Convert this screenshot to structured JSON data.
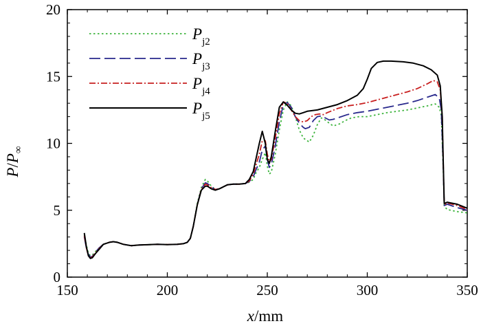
{
  "chart_data": {
    "type": "line",
    "xlabel_italic": "x",
    "xlabel_rest": "/mm",
    "ylabel_main": "P",
    "ylabel_sep": "/",
    "ylabel_denom": "P",
    "ylabel_sub": "∞",
    "xlim": [
      150,
      350
    ],
    "ylim": [
      0,
      20
    ],
    "xticks": [
      150,
      200,
      250,
      300,
      350
    ],
    "yticks": [
      0,
      5,
      10,
      15,
      20
    ],
    "legend_position": "top-left",
    "grid": false,
    "series": [
      {
        "name": "P",
        "sub": "j2",
        "color": "#3cb43c",
        "dash": "2.5,3.5",
        "width": 1.8,
        "points": [
          [
            158.5,
            3.2
          ],
          [
            159.5,
            2.4
          ],
          [
            160.5,
            1.8
          ],
          [
            161.5,
            1.6
          ],
          [
            162.5,
            1.65
          ],
          [
            164,
            1.9
          ],
          [
            166,
            2.2
          ],
          [
            168,
            2.45
          ],
          [
            171,
            2.6
          ],
          [
            173,
            2.65
          ],
          [
            175,
            2.6
          ],
          [
            178,
            2.45
          ],
          [
            182,
            2.35
          ],
          [
            186,
            2.4
          ],
          [
            190,
            2.42
          ],
          [
            195,
            2.45
          ],
          [
            200,
            2.43
          ],
          [
            205,
            2.45
          ],
          [
            208,
            2.5
          ],
          [
            210,
            2.6
          ],
          [
            211.5,
            2.9
          ],
          [
            213,
            3.8
          ],
          [
            215,
            5.5
          ],
          [
            217,
            6.7
          ],
          [
            219,
            7.3
          ],
          [
            220,
            7.2
          ],
          [
            222,
            6.8
          ],
          [
            224,
            6.55
          ],
          [
            226,
            6.6
          ],
          [
            228,
            6.75
          ],
          [
            230,
            6.9
          ],
          [
            233,
            6.95
          ],
          [
            236,
            6.95
          ],
          [
            239,
            7.0
          ],
          [
            241,
            7.1
          ],
          [
            243,
            7.3
          ],
          [
            244,
            7.7
          ],
          [
            246,
            8.2
          ],
          [
            247.5,
            8.8
          ],
          [
            249,
            9.3
          ],
          [
            250,
            8.3
          ],
          [
            251,
            7.7
          ],
          [
            252,
            7.85
          ],
          [
            254,
            9.2
          ],
          [
            256,
            11.0
          ],
          [
            258,
            12.5
          ],
          [
            260,
            13.1
          ],
          [
            262,
            12.8
          ],
          [
            264,
            12.0
          ],
          [
            266,
            11.0
          ],
          [
            268,
            10.4
          ],
          [
            270,
            10.2
          ],
          [
            271,
            10.1
          ],
          [
            273,
            10.6
          ],
          [
            275,
            11.4
          ],
          [
            277,
            11.9
          ],
          [
            279,
            11.75
          ],
          [
            281,
            11.5
          ],
          [
            283,
            11.3
          ],
          [
            286,
            11.45
          ],
          [
            289,
            11.7
          ],
          [
            292,
            11.9
          ],
          [
            296,
            12.0
          ],
          [
            300,
            12.0
          ],
          [
            305,
            12.15
          ],
          [
            310,
            12.3
          ],
          [
            315,
            12.4
          ],
          [
            320,
            12.5
          ],
          [
            325,
            12.65
          ],
          [
            330,
            12.8
          ],
          [
            334,
            12.95
          ],
          [
            336,
            12.7
          ],
          [
            337,
            12.1
          ],
          [
            338,
            8.0
          ],
          [
            338.5,
            5.3
          ],
          [
            340,
            5.05
          ],
          [
            345,
            4.9
          ],
          [
            350,
            4.8
          ]
        ]
      },
      {
        "name": "P",
        "sub": "j3",
        "color": "#28288c",
        "dash": "16,6",
        "width": 1.8,
        "points": [
          [
            158.5,
            3.0
          ],
          [
            159.5,
            2.2
          ],
          [
            160.5,
            1.7
          ],
          [
            161.5,
            1.5
          ],
          [
            162.5,
            1.55
          ],
          [
            164,
            1.85
          ],
          [
            166,
            2.2
          ],
          [
            168,
            2.45
          ],
          [
            171,
            2.6
          ],
          [
            173,
            2.65
          ],
          [
            175,
            2.6
          ],
          [
            178,
            2.45
          ],
          [
            182,
            2.35
          ],
          [
            186,
            2.4
          ],
          [
            190,
            2.42
          ],
          [
            195,
            2.45
          ],
          [
            200,
            2.43
          ],
          [
            205,
            2.45
          ],
          [
            208,
            2.5
          ],
          [
            210,
            2.6
          ],
          [
            211.5,
            2.9
          ],
          [
            213,
            3.8
          ],
          [
            215,
            5.4
          ],
          [
            217,
            6.6
          ],
          [
            219,
            7.05
          ],
          [
            220,
            7.0
          ],
          [
            222,
            6.75
          ],
          [
            224,
            6.55
          ],
          [
            226,
            6.6
          ],
          [
            228,
            6.75
          ],
          [
            230,
            6.9
          ],
          [
            233,
            6.95
          ],
          [
            236,
            6.95
          ],
          [
            239,
            7.0
          ],
          [
            241,
            7.15
          ],
          [
            243,
            7.5
          ],
          [
            244,
            7.9
          ],
          [
            246,
            8.6
          ],
          [
            247.5,
            9.5
          ],
          [
            249,
            9.8
          ],
          [
            250,
            8.8
          ],
          [
            251,
            8.2
          ],
          [
            252,
            8.4
          ],
          [
            254,
            9.8
          ],
          [
            256,
            11.6
          ],
          [
            258,
            12.9
          ],
          [
            260,
            13.05
          ],
          [
            262,
            12.7
          ],
          [
            264,
            12.0
          ],
          [
            266,
            11.5
          ],
          [
            268,
            11.2
          ],
          [
            269,
            11.1
          ],
          [
            271,
            11.2
          ],
          [
            273,
            11.7
          ],
          [
            275,
            12.0
          ],
          [
            277,
            12.05
          ],
          [
            279,
            11.9
          ],
          [
            281,
            11.75
          ],
          [
            283,
            11.8
          ],
          [
            286,
            11.95
          ],
          [
            290,
            12.15
          ],
          [
            295,
            12.3
          ],
          [
            300,
            12.4
          ],
          [
            305,
            12.55
          ],
          [
            310,
            12.7
          ],
          [
            315,
            12.85
          ],
          [
            320,
            13.0
          ],
          [
            325,
            13.2
          ],
          [
            330,
            13.45
          ],
          [
            334,
            13.65
          ],
          [
            336,
            13.4
          ],
          [
            337,
            12.5
          ],
          [
            338,
            8.2
          ],
          [
            338.5,
            5.35
          ],
          [
            340,
            5.45
          ],
          [
            345,
            5.2
          ],
          [
            350,
            5.0
          ]
        ]
      },
      {
        "name": "P",
        "sub": "j4",
        "color": "#c81e1e",
        "dash": "9,3,2,3",
        "width": 1.8,
        "points": [
          [
            158.5,
            3.1
          ],
          [
            159.5,
            2.2
          ],
          [
            160.5,
            1.6
          ],
          [
            161.5,
            1.45
          ],
          [
            162.5,
            1.5
          ],
          [
            164,
            1.8
          ],
          [
            166,
            2.15
          ],
          [
            168,
            2.45
          ],
          [
            171,
            2.6
          ],
          [
            173,
            2.65
          ],
          [
            175,
            2.6
          ],
          [
            178,
            2.45
          ],
          [
            182,
            2.35
          ],
          [
            186,
            2.4
          ],
          [
            190,
            2.42
          ],
          [
            195,
            2.45
          ],
          [
            200,
            2.43
          ],
          [
            205,
            2.45
          ],
          [
            208,
            2.5
          ],
          [
            210,
            2.6
          ],
          [
            211.5,
            2.9
          ],
          [
            213,
            3.8
          ],
          [
            215,
            5.4
          ],
          [
            217,
            6.55
          ],
          [
            219,
            6.95
          ],
          [
            220,
            6.9
          ],
          [
            222,
            6.7
          ],
          [
            224,
            6.55
          ],
          [
            226,
            6.6
          ],
          [
            228,
            6.75
          ],
          [
            230,
            6.9
          ],
          [
            233,
            6.95
          ],
          [
            236,
            6.95
          ],
          [
            239,
            7.0
          ],
          [
            241,
            7.2
          ],
          [
            243,
            7.7
          ],
          [
            244,
            8.2
          ],
          [
            246,
            9.2
          ],
          [
            247.5,
            10.2
          ],
          [
            249,
            10.2
          ],
          [
            250,
            9.2
          ],
          [
            251,
            8.6
          ],
          [
            252,
            8.8
          ],
          [
            254,
            10.4
          ],
          [
            256,
            12.2
          ],
          [
            258,
            13.1
          ],
          [
            260,
            13.0
          ],
          [
            262,
            12.5
          ],
          [
            264,
            12.0
          ],
          [
            266,
            11.7
          ],
          [
            268,
            11.6
          ],
          [
            270,
            11.7
          ],
          [
            272,
            12.0
          ],
          [
            274,
            12.15
          ],
          [
            276,
            12.2
          ],
          [
            278,
            12.15
          ],
          [
            280,
            12.3
          ],
          [
            285,
            12.6
          ],
          [
            290,
            12.8
          ],
          [
            295,
            12.9
          ],
          [
            300,
            13.05
          ],
          [
            305,
            13.25
          ],
          [
            310,
            13.45
          ],
          [
            315,
            13.65
          ],
          [
            320,
            13.85
          ],
          [
            325,
            14.1
          ],
          [
            330,
            14.45
          ],
          [
            333,
            14.7
          ],
          [
            335,
            14.6
          ],
          [
            336.5,
            14.0
          ],
          [
            337.5,
            12.0
          ],
          [
            338,
            8.5
          ],
          [
            338.5,
            5.4
          ],
          [
            340,
            5.55
          ],
          [
            345,
            5.35
          ],
          [
            350,
            5.05
          ]
        ]
      },
      {
        "name": "P",
        "sub": "j5",
        "color": "#000000",
        "dash": "",
        "width": 2.0,
        "points": [
          [
            158.5,
            3.3
          ],
          [
            159.5,
            2.3
          ],
          [
            160.5,
            1.6
          ],
          [
            161.5,
            1.4
          ],
          [
            162.5,
            1.45
          ],
          [
            164,
            1.75
          ],
          [
            166,
            2.1
          ],
          [
            168,
            2.45
          ],
          [
            171,
            2.6
          ],
          [
            173,
            2.65
          ],
          [
            175,
            2.6
          ],
          [
            178,
            2.45
          ],
          [
            182,
            2.35
          ],
          [
            186,
            2.4
          ],
          [
            190,
            2.42
          ],
          [
            195,
            2.45
          ],
          [
            200,
            2.43
          ],
          [
            205,
            2.45
          ],
          [
            208,
            2.5
          ],
          [
            210,
            2.6
          ],
          [
            211.5,
            2.9
          ],
          [
            213,
            3.8
          ],
          [
            215,
            5.4
          ],
          [
            217,
            6.5
          ],
          [
            219,
            6.8
          ],
          [
            220,
            6.8
          ],
          [
            222,
            6.6
          ],
          [
            224,
            6.5
          ],
          [
            226,
            6.6
          ],
          [
            228,
            6.75
          ],
          [
            230,
            6.9
          ],
          [
            233,
            6.95
          ],
          [
            236,
            6.95
          ],
          [
            239,
            7.0
          ],
          [
            241,
            7.3
          ],
          [
            243,
            7.9
          ],
          [
            244,
            8.6
          ],
          [
            246,
            10.0
          ],
          [
            247.5,
            10.9
          ],
          [
            249,
            10.0
          ],
          [
            250,
            8.8
          ],
          [
            251,
            8.5
          ],
          [
            252,
            9.0
          ],
          [
            254,
            10.9
          ],
          [
            256,
            12.7
          ],
          [
            258,
            13.1
          ],
          [
            260,
            12.85
          ],
          [
            262,
            12.5
          ],
          [
            264,
            12.25
          ],
          [
            266,
            12.2
          ],
          [
            268,
            12.3
          ],
          [
            270,
            12.4
          ],
          [
            275,
            12.5
          ],
          [
            280,
            12.7
          ],
          [
            285,
            12.9
          ],
          [
            290,
            13.2
          ],
          [
            295,
            13.6
          ],
          [
            298,
            14.1
          ],
          [
            300,
            14.8
          ],
          [
            302,
            15.6
          ],
          [
            305,
            16.05
          ],
          [
            308,
            16.15
          ],
          [
            312,
            16.15
          ],
          [
            318,
            16.1
          ],
          [
            323,
            16.0
          ],
          [
            328,
            15.8
          ],
          [
            332,
            15.5
          ],
          [
            335,
            15.1
          ],
          [
            336.5,
            14.3
          ],
          [
            337.5,
            12.0
          ],
          [
            338,
            8.5
          ],
          [
            338.5,
            5.5
          ],
          [
            340,
            5.6
          ],
          [
            345,
            5.45
          ],
          [
            350,
            5.15
          ]
        ]
      }
    ]
  }
}
